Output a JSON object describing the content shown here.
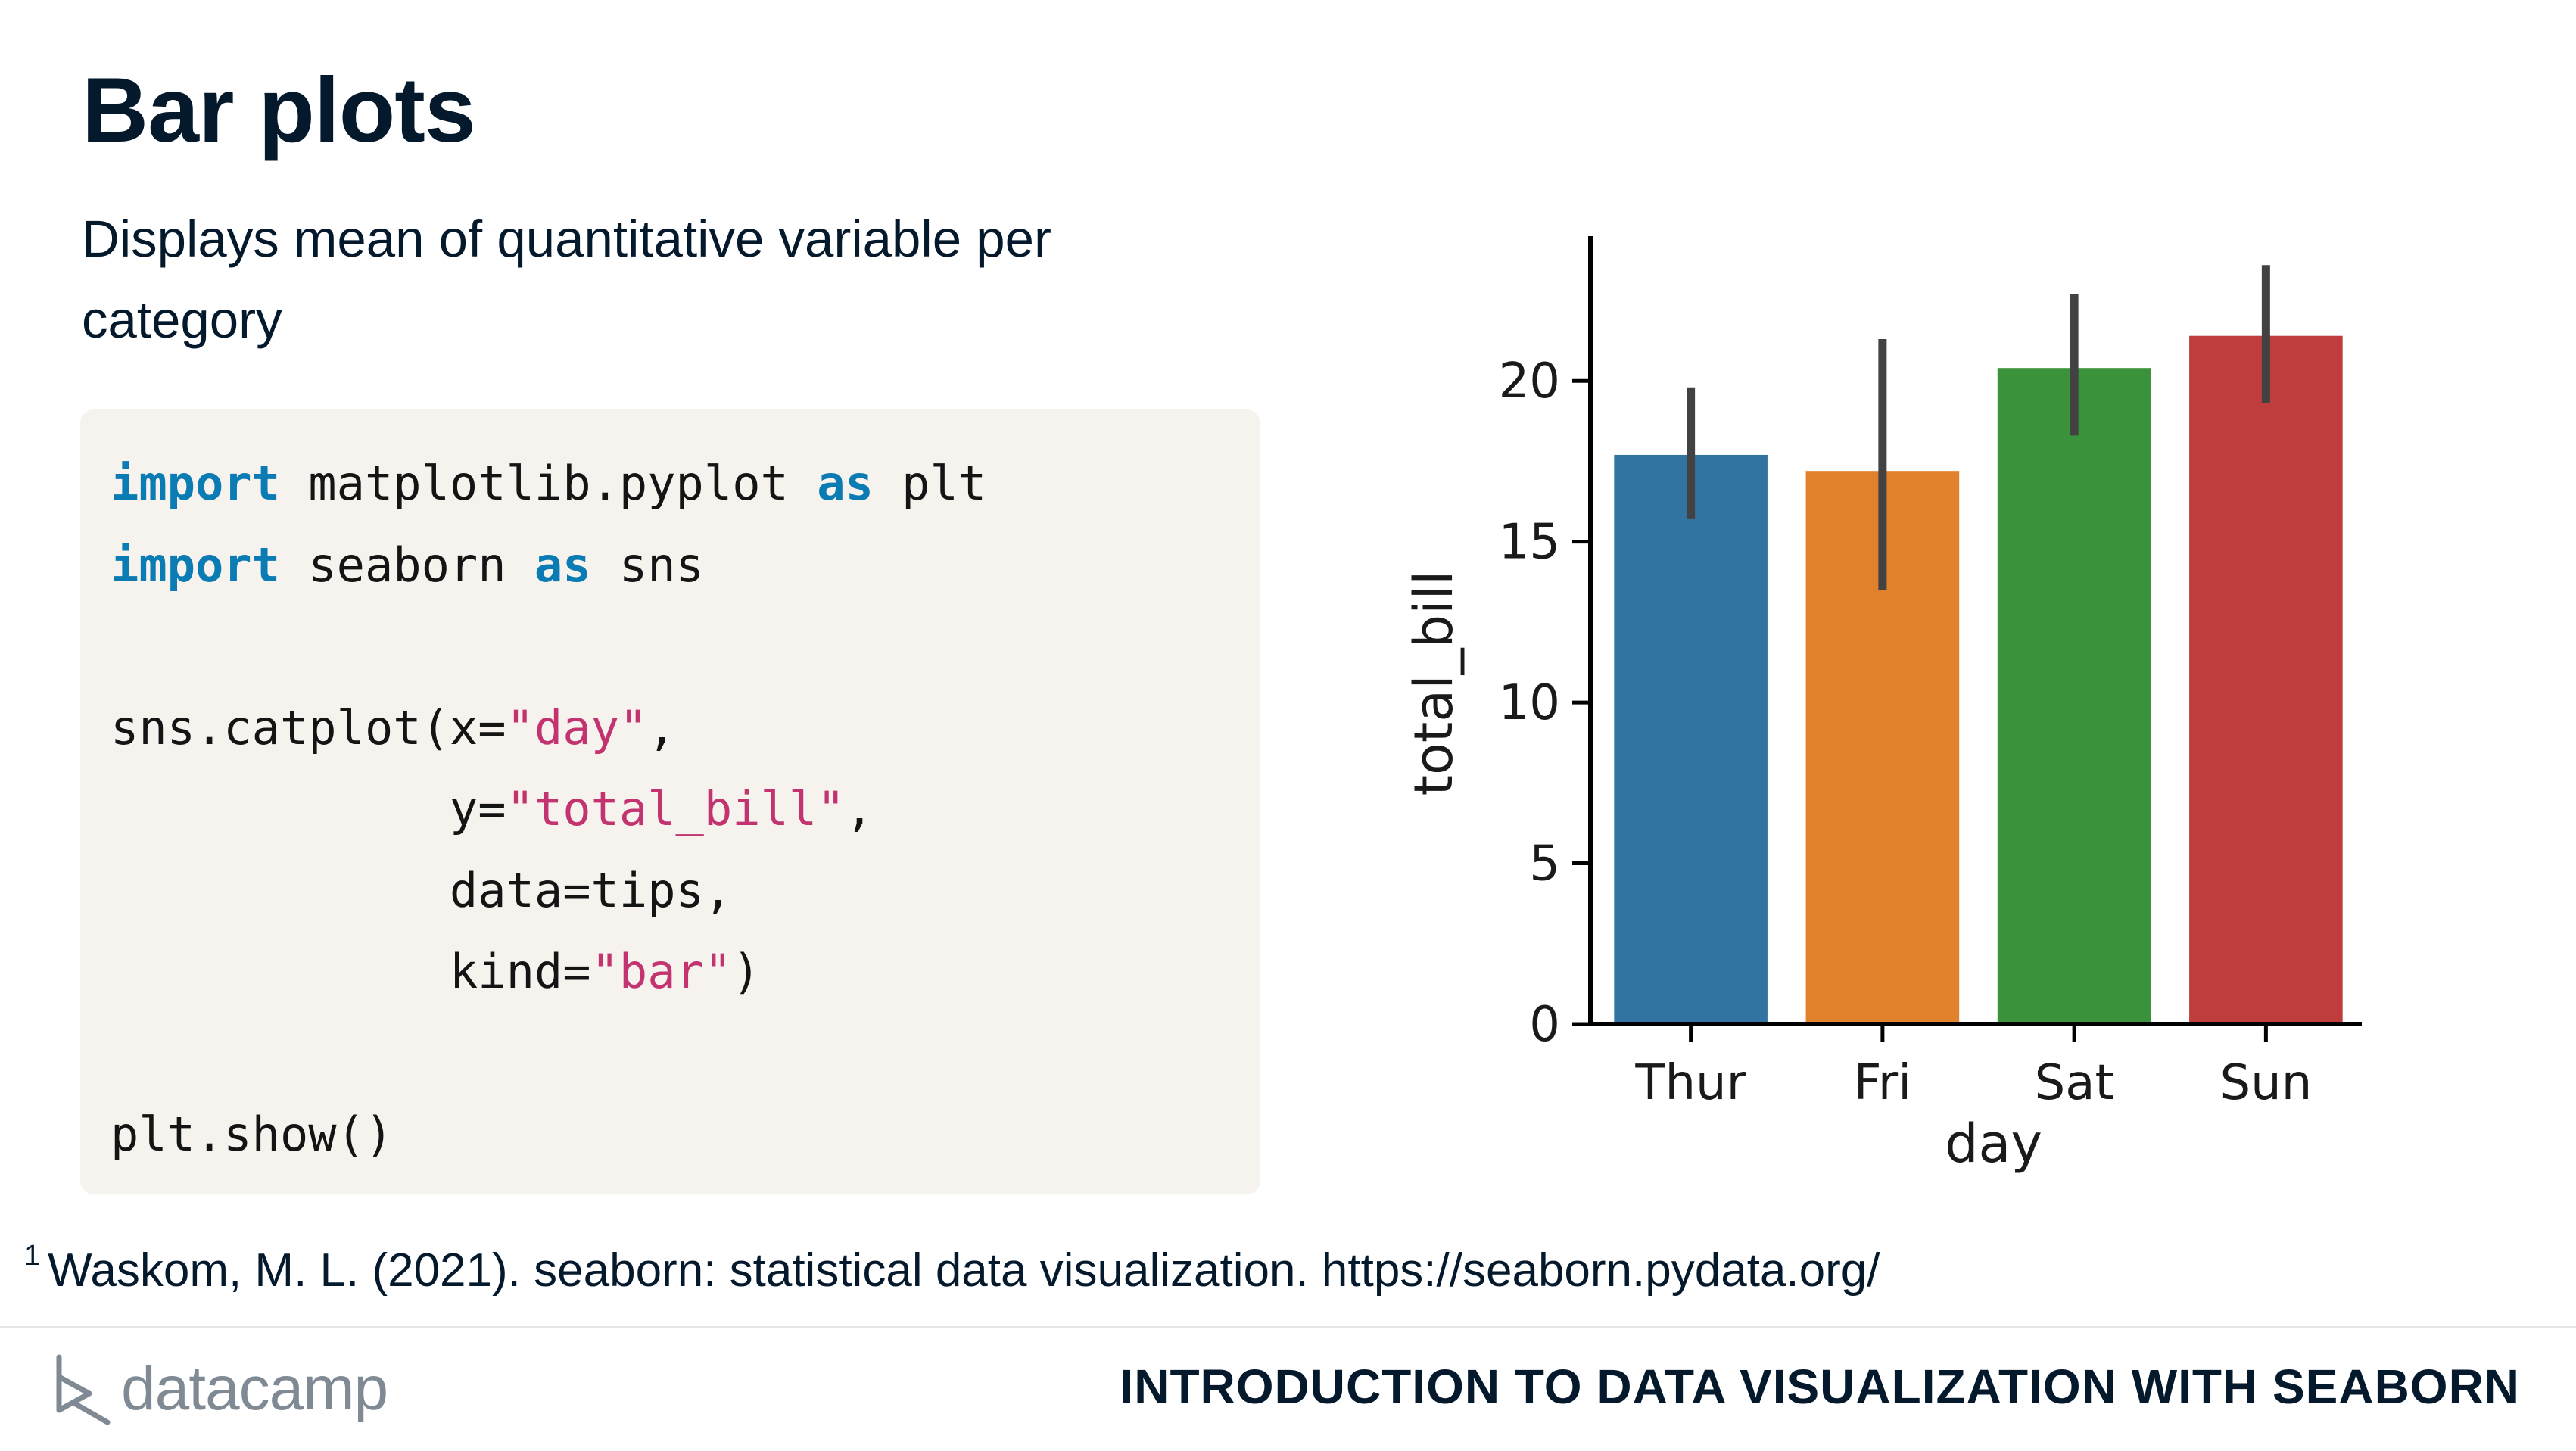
{
  "slide": {
    "title": "Bar plots",
    "subtitle": "Displays mean of quantitative variable per category"
  },
  "code": {
    "line1": {
      "kw1": "import",
      "mod": " matplotlib.pyplot ",
      "kw2": "as",
      "alias": " plt"
    },
    "line2": {
      "kw1": "import",
      "mod": " seaborn ",
      "kw2": "as",
      "alias": " sns"
    },
    "line4": {
      "pre": "sns.catplot(x=",
      "str": "\"day\"",
      "post": ","
    },
    "line5": {
      "pre": "            y=",
      "str": "\"total_bill\"",
      "post": ","
    },
    "line6": {
      "text": "            data=tips,"
    },
    "line7": {
      "pre": "            kind=",
      "str": "\"bar\"",
      "post": ")"
    },
    "line9": {
      "text": "plt.show()"
    }
  },
  "chart_data": {
    "type": "bar",
    "categories": [
      "Thur",
      "Fri",
      "Sat",
      "Sun"
    ],
    "values": [
      17.7,
      17.2,
      20.4,
      21.4
    ],
    "ci_low": [
      15.7,
      13.5,
      18.3,
      19.3
    ],
    "ci_high": [
      19.8,
      21.3,
      22.7,
      23.6
    ],
    "colors": [
      "#3274a1",
      "#e1812c",
      "#3a923a",
      "#c03d3e"
    ],
    "errorbar_color": "#424242",
    "xlabel": "day",
    "ylabel": "total_bill",
    "yticks": [
      0,
      5,
      10,
      15,
      20
    ],
    "ylim": [
      0,
      24.5
    ],
    "grid": false
  },
  "footnote": {
    "marker": "1",
    "text": "Waskom, M. L. (2021). seaborn: statistical data visualization. https://seaborn.pydata.org/"
  },
  "footer": {
    "logo_text": "datacamp",
    "course_title": "INTRODUCTION TO DATA VISUALIZATION WITH SEABORN"
  }
}
